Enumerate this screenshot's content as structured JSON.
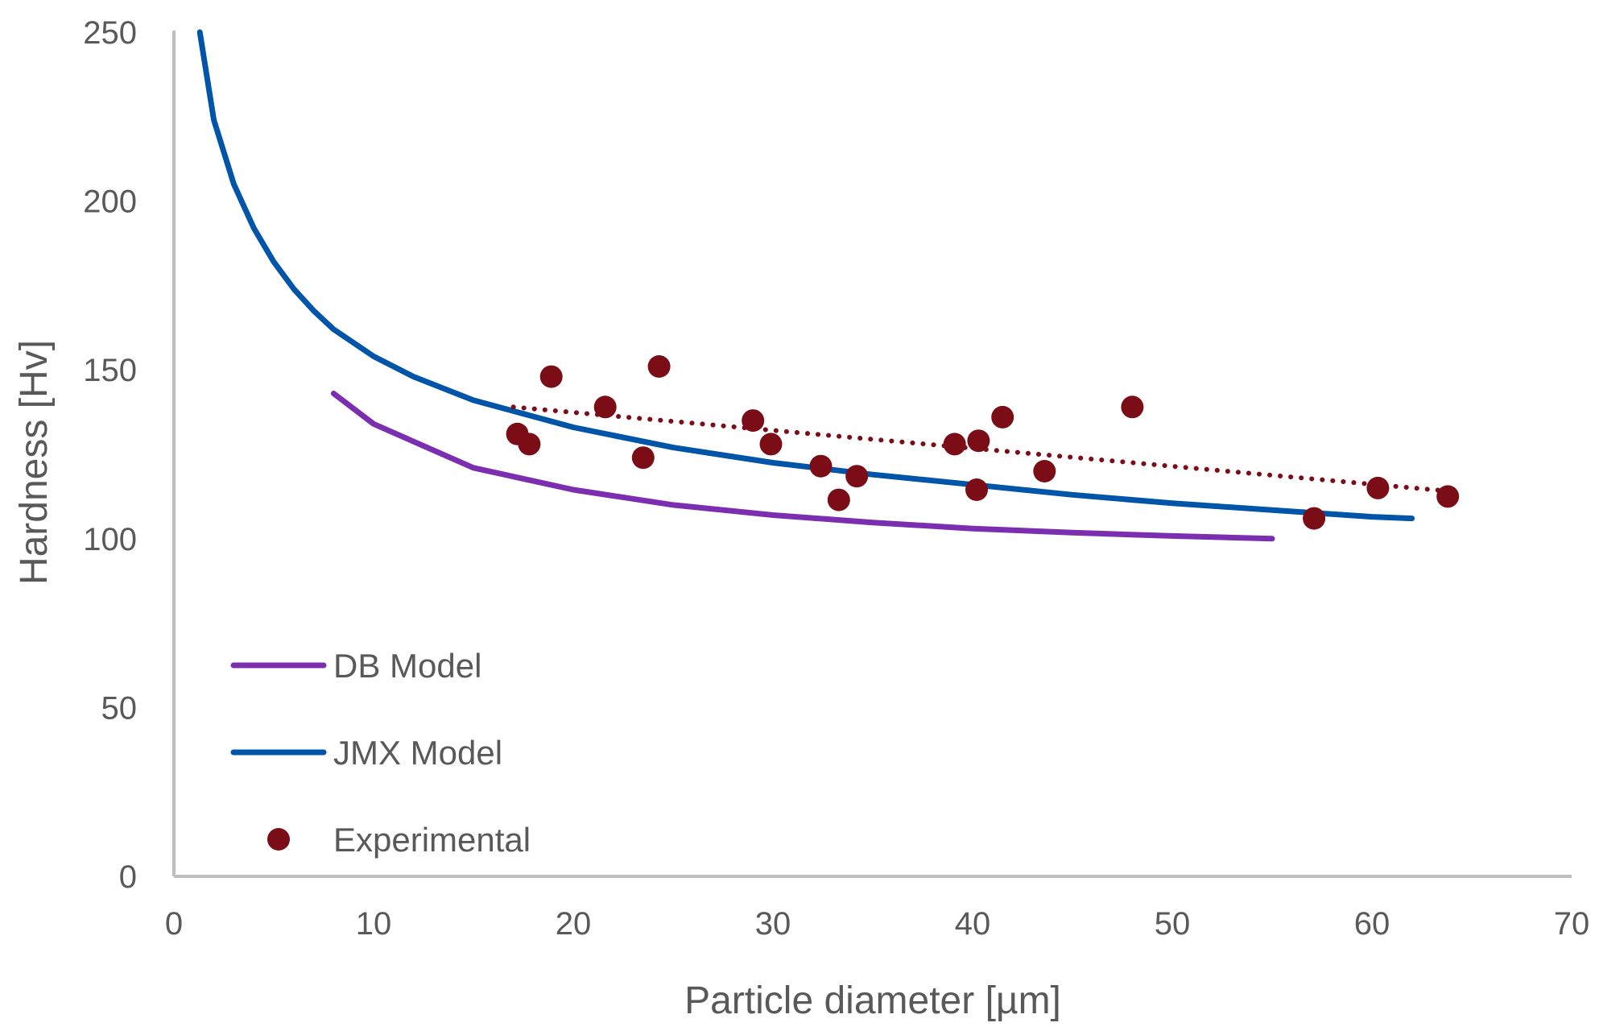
{
  "chart_data": {
    "type": "scatter",
    "title": "",
    "xlabel": "Particle diameter [µm]",
    "ylabel": "Hardness [Hv]",
    "xlim": [
      0,
      70
    ],
    "ylim": [
      0,
      250
    ],
    "xticks": [
      "0",
      "10",
      "20",
      "30",
      "40",
      "50",
      "60",
      "70"
    ],
    "yticks": [
      "0",
      "50",
      "100",
      "150",
      "200",
      "250"
    ],
    "grid": false,
    "legend_position": "bottom-left",
    "colors": {
      "axis": "#bfbfbf",
      "db_model": "#7b2fb0",
      "jmx_model": "#0055a8",
      "experimental": "#7b0d17",
      "trendline": "#7b0d17"
    },
    "legend": [
      {
        "label": "DB Model",
        "kind": "line",
        "series": "db_model"
      },
      {
        "label": "JMX Model",
        "kind": "line",
        "series": "jmx_model"
      },
      {
        "label": "Experimental",
        "kind": "marker",
        "series": "experimental"
      }
    ],
    "series": [
      {
        "id": "db_model",
        "name": "DB Model",
        "kind": "line",
        "x": [
          8,
          10,
          15,
          20,
          25,
          30,
          35,
          40,
          45,
          50,
          55
        ],
        "y": [
          143,
          134,
          121,
          114.5,
          110,
          107,
          104.8,
          103,
          101.8,
          100.8,
          100
        ]
      },
      {
        "id": "jmx_model",
        "name": "JMX Model",
        "kind": "line",
        "x": [
          1.3,
          2,
          3,
          4,
          5,
          6,
          7,
          8,
          10,
          12,
          15,
          20,
          25,
          30,
          35,
          40,
          45,
          50,
          55,
          60,
          62
        ],
        "y": [
          250,
          224,
          205,
          192,
          182,
          174,
          167.5,
          162,
          154,
          148,
          141,
          133,
          127,
          122.5,
          119,
          116,
          113,
          110.5,
          108.5,
          106.5,
          106
        ]
      },
      {
        "id": "experimental",
        "name": "Experimental",
        "kind": "scatter",
        "x": [
          17.2,
          17.8,
          18.9,
          21.6,
          23.5,
          24.3,
          29.0,
          29.9,
          32.4,
          33.3,
          34.2,
          39.1,
          40.2,
          40.3,
          41.5,
          43.6,
          48.0,
          57.1,
          60.3,
          63.8
        ],
        "y": [
          131,
          128,
          148,
          139,
          124,
          151,
          135,
          128,
          121.5,
          111.5,
          118.5,
          128,
          114.5,
          129,
          136,
          120,
          139,
          106,
          115,
          112.5
        ]
      },
      {
        "id": "trendline",
        "kind": "trendline",
        "x": [
          17,
          64
        ],
        "y": [
          139,
          114
        ]
      }
    ]
  }
}
